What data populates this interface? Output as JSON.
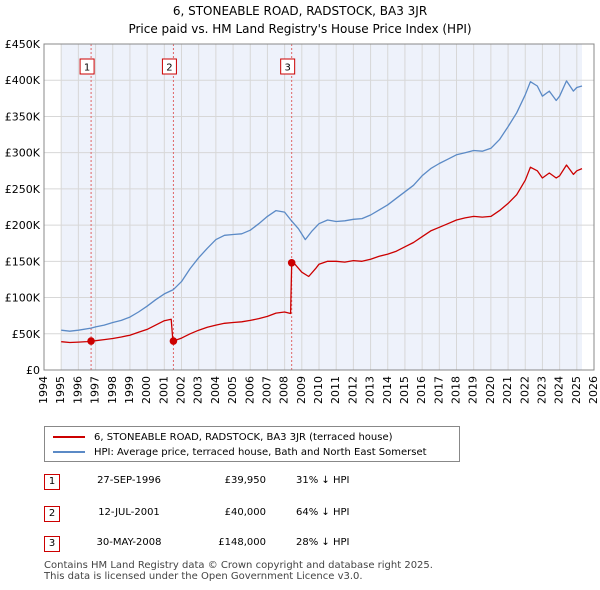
{
  "header": {
    "title_line1": "6, STONEABLE ROAD, RADSTOCK, BA3 3JR",
    "title_line2": "Price paid vs. HM Land Registry's House Price Index (HPI)"
  },
  "chart_data": {
    "type": "line",
    "title": "6, STONEABLE ROAD, RADSTOCK, BA3 3JR — Price paid vs. HM Land Registry's House Price Index (HPI)",
    "xlim": [
      1994,
      2026
    ],
    "ylim": [
      0,
      450000
    ],
    "x_ticks": [
      1994,
      1995,
      1996,
      1997,
      1998,
      1999,
      2000,
      2001,
      2002,
      2003,
      2004,
      2005,
      2006,
      2007,
      2008,
      2009,
      2010,
      2011,
      2012,
      2013,
      2014,
      2015,
      2016,
      2017,
      2018,
      2019,
      2020,
      2021,
      2022,
      2023,
      2024,
      2025,
      2026
    ],
    "y_ticks": [
      0,
      50000,
      100000,
      150000,
      200000,
      250000,
      300000,
      350000,
      400000,
      450000
    ],
    "y_tick_labels": [
      "£0",
      "£50K",
      "£100K",
      "£150K",
      "£200K",
      "£250K",
      "£300K",
      "£350K",
      "£400K",
      "£450K"
    ],
    "data_range": [
      1995.0,
      2025.3
    ],
    "series": [
      {
        "name": "6, STONEABLE ROAD, RADSTOCK, BA3 3JR (terraced house)",
        "color": "#cc0000",
        "points": [
          [
            1995.0,
            39000
          ],
          [
            1995.5,
            38000
          ],
          [
            1996.0,
            38500
          ],
          [
            1996.5,
            39200
          ],
          [
            1996.74,
            39950
          ],
          [
            1997.0,
            40500
          ],
          [
            1997.5,
            42000
          ],
          [
            1998.0,
            43500
          ],
          [
            1998.5,
            45500
          ],
          [
            1999.0,
            48000
          ],
          [
            1999.5,
            52000
          ],
          [
            2000.0,
            56000
          ],
          [
            2000.5,
            62000
          ],
          [
            2001.0,
            68000
          ],
          [
            2001.4,
            70000
          ],
          [
            2001.5,
            40000
          ],
          [
            2001.53,
            40000
          ],
          [
            2002.0,
            44000
          ],
          [
            2002.5,
            50000
          ],
          [
            2003.0,
            55000
          ],
          [
            2003.5,
            59000
          ],
          [
            2004.0,
            62000
          ],
          [
            2004.5,
            64500
          ],
          [
            2005.0,
            65500
          ],
          [
            2005.5,
            66500
          ],
          [
            2006.0,
            68500
          ],
          [
            2006.5,
            71000
          ],
          [
            2007.0,
            74000
          ],
          [
            2007.5,
            78500
          ],
          [
            2008.0,
            80000
          ],
          [
            2008.35,
            78000
          ],
          [
            2008.41,
            148000
          ],
          [
            2008.6,
            146000
          ],
          [
            2009.0,
            135000
          ],
          [
            2009.4,
            129000
          ],
          [
            2009.8,
            140000
          ],
          [
            2010.0,
            146000
          ],
          [
            2010.5,
            150000
          ],
          [
            2011.0,
            150000
          ],
          [
            2011.5,
            149000
          ],
          [
            2012.0,
            151000
          ],
          [
            2012.5,
            150000
          ],
          [
            2013.0,
            153000
          ],
          [
            2013.5,
            157000
          ],
          [
            2014.0,
            160000
          ],
          [
            2014.5,
            164000
          ],
          [
            2015.0,
            170000
          ],
          [
            2015.5,
            176000
          ],
          [
            2016.0,
            184000
          ],
          [
            2016.5,
            192000
          ],
          [
            2017.0,
            197000
          ],
          [
            2017.5,
            202000
          ],
          [
            2018.0,
            207000
          ],
          [
            2018.5,
            210000
          ],
          [
            2019.0,
            212000
          ],
          [
            2019.5,
            211000
          ],
          [
            2020.0,
            212000
          ],
          [
            2020.5,
            220000
          ],
          [
            2021.0,
            230000
          ],
          [
            2021.5,
            242000
          ],
          [
            2022.0,
            262000
          ],
          [
            2022.3,
            280000
          ],
          [
            2022.7,
            275000
          ],
          [
            2023.0,
            265000
          ],
          [
            2023.4,
            272000
          ],
          [
            2023.8,
            265000
          ],
          [
            2024.0,
            268000
          ],
          [
            2024.4,
            283000
          ],
          [
            2024.8,
            270000
          ],
          [
            2025.0,
            275000
          ],
          [
            2025.3,
            278000
          ]
        ]
      },
      {
        "name": "HPI: Average price, terraced house, Bath and North East Somerset",
        "color": "#5b8ac6",
        "points": [
          [
            1995.0,
            55000
          ],
          [
            1995.5,
            53500
          ],
          [
            1996.0,
            55000
          ],
          [
            1996.74,
            57800
          ],
          [
            1997.0,
            59500
          ],
          [
            1997.5,
            62000
          ],
          [
            1998.0,
            65500
          ],
          [
            1998.5,
            68500
          ],
          [
            1999.0,
            73000
          ],
          [
            1999.5,
            80000
          ],
          [
            2000.0,
            88000
          ],
          [
            2000.5,
            97000
          ],
          [
            2001.0,
            105000
          ],
          [
            2001.53,
            111000
          ],
          [
            2002.0,
            122000
          ],
          [
            2002.5,
            140000
          ],
          [
            2003.0,
            155000
          ],
          [
            2003.5,
            168000
          ],
          [
            2004.0,
            180000
          ],
          [
            2004.5,
            186000
          ],
          [
            2005.0,
            187000
          ],
          [
            2005.5,
            188000
          ],
          [
            2006.0,
            193000
          ],
          [
            2006.5,
            202000
          ],
          [
            2007.0,
            212000
          ],
          [
            2007.5,
            220000
          ],
          [
            2008.0,
            218000
          ],
          [
            2008.41,
            205500
          ],
          [
            2008.8,
            195000
          ],
          [
            2009.2,
            180000
          ],
          [
            2009.6,
            192000
          ],
          [
            2010.0,
            202000
          ],
          [
            2010.5,
            207000
          ],
          [
            2011.0,
            205000
          ],
          [
            2011.5,
            206000
          ],
          [
            2012.0,
            208000
          ],
          [
            2012.5,
            209000
          ],
          [
            2013.0,
            214000
          ],
          [
            2013.5,
            221000
          ],
          [
            2014.0,
            228000
          ],
          [
            2014.5,
            237000
          ],
          [
            2015.0,
            246000
          ],
          [
            2015.5,
            255000
          ],
          [
            2016.0,
            268000
          ],
          [
            2016.5,
            278000
          ],
          [
            2017.0,
            285000
          ],
          [
            2017.5,
            291000
          ],
          [
            2018.0,
            297000
          ],
          [
            2018.5,
            300000
          ],
          [
            2019.0,
            303000
          ],
          [
            2019.5,
            302000
          ],
          [
            2020.0,
            306000
          ],
          [
            2020.5,
            318000
          ],
          [
            2021.0,
            336000
          ],
          [
            2021.5,
            355000
          ],
          [
            2022.0,
            380000
          ],
          [
            2022.3,
            398000
          ],
          [
            2022.7,
            392000
          ],
          [
            2023.0,
            378000
          ],
          [
            2023.4,
            385000
          ],
          [
            2023.8,
            372000
          ],
          [
            2024.0,
            378000
          ],
          [
            2024.4,
            399000
          ],
          [
            2024.8,
            385000
          ],
          [
            2025.0,
            390000
          ],
          [
            2025.3,
            392000
          ]
        ]
      }
    ],
    "sales": [
      {
        "n": "1",
        "x": 1996.74,
        "price": 39950
      },
      {
        "n": "2",
        "x": 2001.53,
        "price": 40000
      },
      {
        "n": "3",
        "x": 2008.41,
        "price": 148000
      }
    ]
  },
  "legend": {
    "red_label": "6, STONEABLE ROAD, RADSTOCK, BA3 3JR (terraced house)",
    "blue_label": "HPI: Average price, terraced house, Bath and North East Somerset",
    "red_color": "#cc0000",
    "blue_color": "#5b8ac6"
  },
  "table": {
    "rows": [
      {
        "n": "1",
        "date": "27-SEP-1996",
        "price": "£39,950",
        "hpi": "31% ↓ HPI"
      },
      {
        "n": "2",
        "date": "12-JUL-2001",
        "price": "£40,000",
        "hpi": "64% ↓ HPI"
      },
      {
        "n": "3",
        "date": "30-MAY-2008",
        "price": "£148,000",
        "hpi": "28% ↓ HPI"
      }
    ]
  },
  "footer": {
    "line1": "Contains HM Land Registry data © Crown copyright and database right 2025.",
    "line2": "This data is licensed under the Open Government Licence v3.0."
  }
}
